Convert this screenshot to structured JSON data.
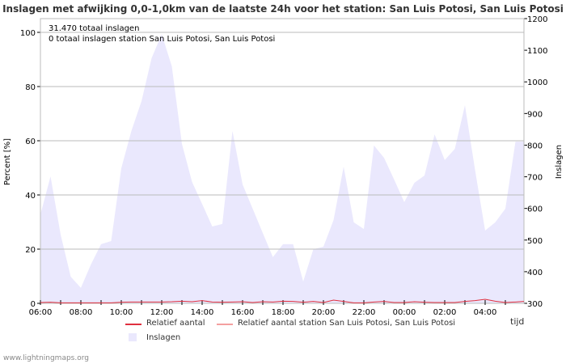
{
  "chart_data": {
    "type": "line",
    "title": "Inslagen met afwijking 0,0-1,0km van de laatste 24h voor het station: San Luis Potosi, San Luis Potosi",
    "ylabel": "Percent   [%]",
    "ylabel_right": "Inslagen",
    "xlabel": "tijd",
    "ylim": [
      0,
      105
    ],
    "ylim_right": [
      300,
      1200
    ],
    "yticks": [
      0,
      20,
      40,
      60,
      80,
      100
    ],
    "yticks_right": [
      300,
      400,
      500,
      600,
      700,
      800,
      900,
      1000,
      1100,
      1200
    ],
    "xtick_labels": [
      "06:00",
      "08:00",
      "10:00",
      "12:00",
      "14:00",
      "16:00",
      "18:00",
      "20:00",
      "22:00",
      "00:00",
      "02:00",
      "04:00"
    ],
    "annotations": [
      "31.470 totaal inslagen",
      "0 totaal inslagen station San Luis Potosi, San Luis Potosi"
    ],
    "legend": [
      "Relatief aantal",
      "Relatief aantal station San Luis Potosi, San Luis Potosi",
      "Inslagen"
    ],
    "interval_minutes": 30,
    "series": [
      {
        "name": "Inslagen",
        "axis": "right",
        "color": "#eae8fd",
        "values": [
          581,
          701,
          517,
          384,
          349,
          423,
          487,
          497,
          727,
          845,
          939,
          1075,
          1151,
          1049,
          804,
          684,
          614,
          543,
          551,
          845,
          676,
          599,
          522,
          446,
          487,
          487,
          369,
          471,
          479,
          563,
          732,
          556,
          535,
          799,
          760,
          691,
          620,
          681,
          704,
          834,
          753,
          788,
          926,
          722,
          530,
          556,
          599,
          811,
          811
        ]
      },
      {
        "name": "Relatief aantal",
        "axis": "left",
        "color": "#e0303f",
        "values": [
          0.3,
          0.4,
          0.2,
          0.2,
          0.2,
          0.2,
          0.2,
          0.2,
          0.4,
          0.5,
          0.5,
          0.5,
          0.5,
          0.6,
          0.8,
          0.6,
          1.0,
          0.5,
          0.4,
          0.5,
          0.6,
          0.3,
          0.6,
          0.5,
          0.8,
          0.7,
          0.4,
          0.7,
          0.3,
          1.2,
          0.7,
          0.2,
          0.2,
          0.5,
          0.7,
          0.3,
          0.3,
          0.6,
          0.4,
          0.3,
          0.3,
          0.3,
          0.7,
          1.0,
          1.5,
          0.8,
          0.3,
          0.5,
          0.7
        ]
      },
      {
        "name": "Relatief aantal station San Luis Potosi, San Luis Potosi",
        "axis": "left",
        "color": "#f4a0a0",
        "values": []
      }
    ]
  },
  "footer": "www.lightningmaps.org"
}
